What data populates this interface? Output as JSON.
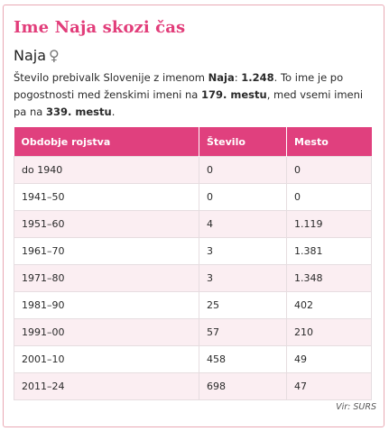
{
  "title": "Ime Naja skozi čas",
  "name": {
    "label": "Naja",
    "gender_symbol": "♀"
  },
  "description": {
    "part1": "Število prebivalk Slovenije z imenom ",
    "name_bold": "Naja",
    "part2": ": ",
    "count_bold": "1.248",
    "part3": ". To ime je po pogostnosti med ženskimi imeni na ",
    "rank_female_bold": "179. mestu",
    "part4": ", med vsemi imeni pa na ",
    "rank_all_bold": "339. mestu",
    "part5": "."
  },
  "table": {
    "headers": [
      "Obdobje rojstva",
      "Število",
      "Mesto"
    ],
    "rows": [
      [
        "do 1940",
        "0",
        "0"
      ],
      [
        "1941–50",
        "0",
        "0"
      ],
      [
        "1951–60",
        "4",
        "1.119"
      ],
      [
        "1961–70",
        "3",
        "1.381"
      ],
      [
        "1971–80",
        "3",
        "1.348"
      ],
      [
        "1981–90",
        "25",
        "402"
      ],
      [
        "1991–00",
        "57",
        "210"
      ],
      [
        "2001–10",
        "458",
        "49"
      ],
      [
        "2011–24",
        "698",
        "47"
      ]
    ]
  },
  "source": "Vir: SURS",
  "colors": {
    "accent": "#e23d7a",
    "header_bg": "#e0407e",
    "row_alt": "#fbeef2",
    "border": "#e9a9b4"
  }
}
